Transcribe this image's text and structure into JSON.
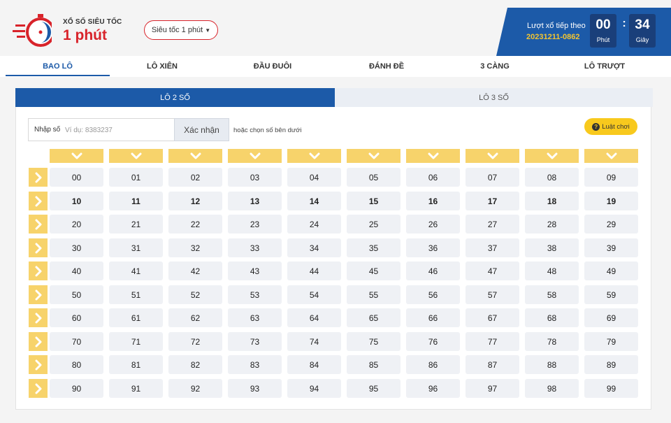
{
  "header": {
    "logo_sup": "XỔ SỐ SIÊU TỐC",
    "logo_main": "1 phút",
    "mode_label": "Siêu tốc 1 phút",
    "next_draw_label": "Lượt xổ tiếp theo",
    "next_draw_id": "20231211-0862",
    "minutes": "00",
    "minutes_unit": "Phút",
    "seconds": "34",
    "seconds_unit": "Giây",
    "colors": {
      "brand_red": "#d8232a",
      "brand_blue": "#1c5aa8",
      "accent_yellow": "#f3c530"
    }
  },
  "main_tabs": [
    {
      "label": "BAO LÔ",
      "active": true
    },
    {
      "label": "LÔ XIÊN",
      "active": false
    },
    {
      "label": "ĐẦU ĐUÔI",
      "active": false
    },
    {
      "label": "ĐÁNH ĐỀ",
      "active": false
    },
    {
      "label": "3 CÀNG",
      "active": false
    },
    {
      "label": "LÔ TRƯỢT",
      "active": false
    }
  ],
  "sub_tabs": [
    {
      "label": "LÔ 2 SỐ",
      "active": true
    },
    {
      "label": "LÔ 3 SỐ",
      "active": false
    }
  ],
  "input": {
    "label": "Nhập số",
    "placeholder": "Ví dụ: 8383237",
    "value": "",
    "confirm_label": "Xác nhận",
    "hint": "hoặc chọn số bên dưới"
  },
  "rules_label": "Luật chơi",
  "grid": {
    "column_icon": "chevron-down-icon",
    "row_icon": "chevron-right-icon",
    "rows": [
      [
        "00",
        "01",
        "02",
        "03",
        "04",
        "05",
        "06",
        "07",
        "08",
        "09"
      ],
      [
        "10",
        "11",
        "12",
        "13",
        "14",
        "15",
        "16",
        "17",
        "18",
        "19"
      ],
      [
        "20",
        "21",
        "22",
        "23",
        "24",
        "25",
        "26",
        "27",
        "28",
        "29"
      ],
      [
        "30",
        "31",
        "32",
        "33",
        "34",
        "35",
        "36",
        "37",
        "38",
        "39"
      ],
      [
        "40",
        "41",
        "42",
        "43",
        "44",
        "45",
        "46",
        "47",
        "48",
        "49"
      ],
      [
        "50",
        "51",
        "52",
        "53",
        "54",
        "55",
        "56",
        "57",
        "58",
        "59"
      ],
      [
        "60",
        "61",
        "62",
        "63",
        "64",
        "65",
        "66",
        "67",
        "68",
        "69"
      ],
      [
        "70",
        "71",
        "72",
        "73",
        "74",
        "75",
        "76",
        "77",
        "78",
        "79"
      ],
      [
        "80",
        "81",
        "82",
        "83",
        "84",
        "85",
        "86",
        "87",
        "88",
        "89"
      ],
      [
        "90",
        "91",
        "92",
        "93",
        "94",
        "95",
        "96",
        "97",
        "98",
        "99"
      ]
    ]
  }
}
